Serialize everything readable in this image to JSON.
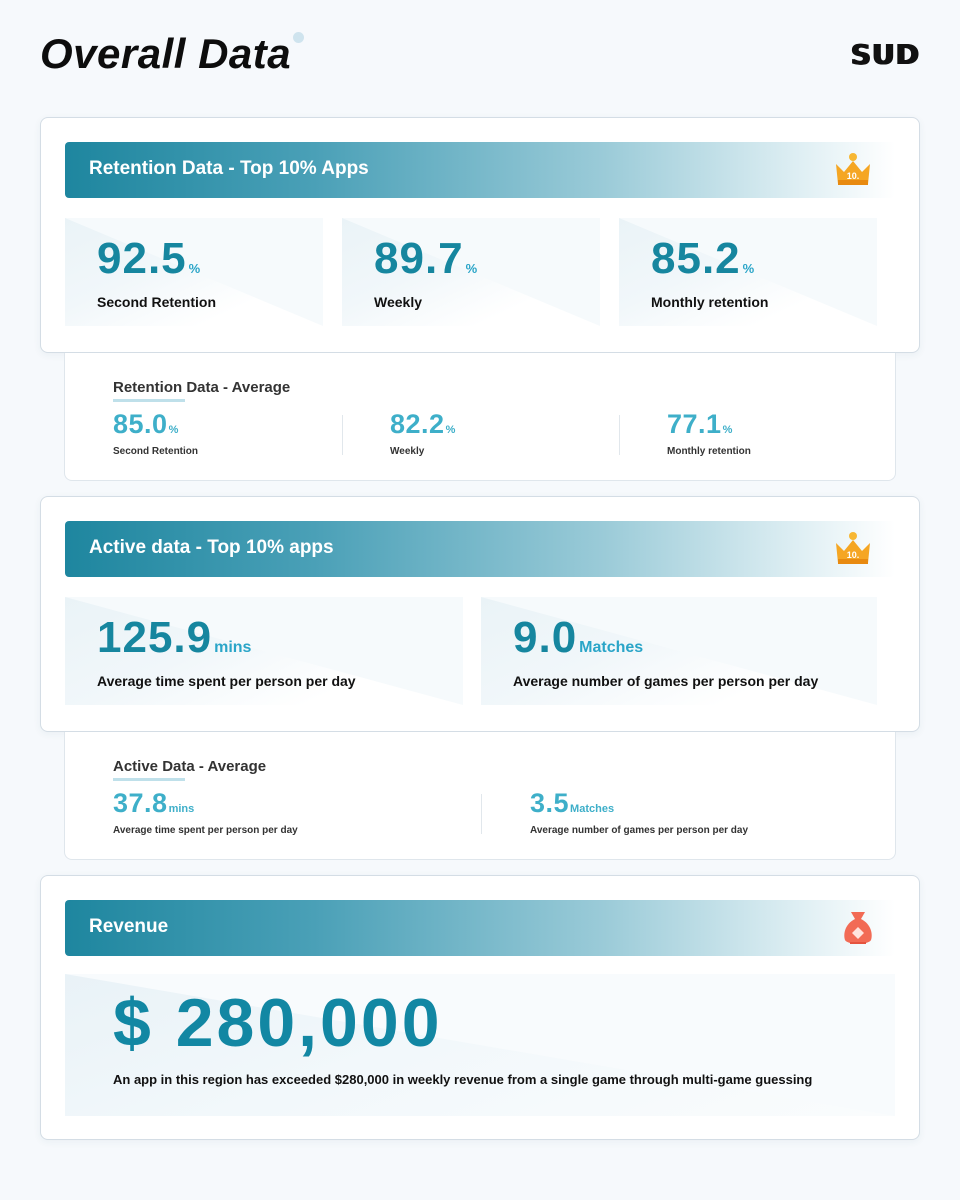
{
  "header": {
    "title": "Overall Data",
    "brand": "SUD"
  },
  "retention_top": {
    "title": "Retention Data - Top 10% Apps",
    "badge_icon": "crown-icon",
    "badge_text": "10.",
    "stats": [
      {
        "value": "92.5",
        "unit": "%",
        "label": "Second Retention"
      },
      {
        "value": "89.7",
        "unit": "%",
        "label": "Weekly"
      },
      {
        "value": "85.2",
        "unit": "%",
        "label": "Monthly retention"
      }
    ]
  },
  "retention_avg": {
    "title": "Retention Data - Average",
    "stats": [
      {
        "value": "85.0",
        "unit": "%",
        "label": "Second Retention"
      },
      {
        "value": "82.2",
        "unit": "%",
        "label": "Weekly"
      },
      {
        "value": "77.1",
        "unit": "%",
        "label": "Monthly retention"
      }
    ]
  },
  "active_top": {
    "title": "Active data - Top 10% apps",
    "badge_icon": "crown-icon",
    "badge_text": "10.",
    "stats": [
      {
        "value": "125.9",
        "unit": "mins",
        "label": "Average time spent per person per day"
      },
      {
        "value": "9.0",
        "unit": "Matches",
        "label": "Average number of games per person per day"
      }
    ]
  },
  "active_avg": {
    "title": "Active Data - Average",
    "stats": [
      {
        "value": "37.8",
        "unit": "mins",
        "label": "Average time spent per person per day"
      },
      {
        "value": "3.5",
        "unit": "Matches",
        "label": "Average number of games per person per day"
      }
    ]
  },
  "revenue": {
    "title": "Revenue",
    "badge_icon": "money-bag-icon",
    "value": "$ 280,000",
    "description": "An app in this region has exceeded $280,000 in weekly revenue from a single game through multi-game guessing"
  },
  "colors": {
    "accent": "#16869f",
    "accent_light": "#3eafc9",
    "badge_gold": "#f5a623",
    "badge_red": "#f0604a"
  }
}
